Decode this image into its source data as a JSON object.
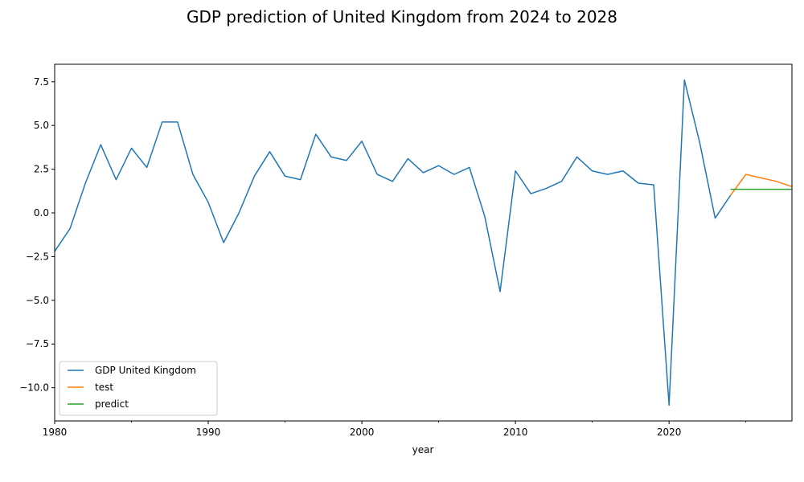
{
  "chart_data": {
    "type": "line",
    "title": "GDP prediction of United Kingdom from 2024 to 2028",
    "xlabel": "year",
    "ylabel": "",
    "xlim": [
      1980,
      2028
    ],
    "ylim": [
      -11.9,
      8.5
    ],
    "x_ticks": [
      1980,
      1990,
      2000,
      2010,
      2020
    ],
    "x_tick_labels": [
      "1980",
      "1990",
      "2000",
      "2010",
      "2020"
    ],
    "x_minor_ticks": [
      1985,
      1995,
      2005,
      2015,
      2025
    ],
    "y_ticks": [
      7.5,
      5.0,
      2.5,
      0.0,
      -2.5,
      -5.0,
      -7.5,
      -10.0
    ],
    "y_tick_labels": [
      "7.5",
      "5.0",
      "2.5",
      "0.0",
      "−2.5",
      "−5.0",
      "−7.5",
      "−10.0"
    ],
    "grid": false,
    "legend_position": "lower-left",
    "series": [
      {
        "name": "GDP United Kingdom",
        "color": "#1f77b4",
        "x": [
          1980,
          1981,
          1982,
          1983,
          1984,
          1985,
          1986,
          1987,
          1988,
          1989,
          1990,
          1991,
          1992,
          1993,
          1994,
          1995,
          1996,
          1997,
          1998,
          1999,
          2000,
          2001,
          2002,
          2003,
          2004,
          2005,
          2006,
          2007,
          2008,
          2009,
          2010,
          2011,
          2012,
          2013,
          2014,
          2015,
          2016,
          2017,
          2018,
          2019,
          2020,
          2021,
          2022,
          2023,
          2024
        ],
        "values": [
          -2.2,
          -0.9,
          1.7,
          3.9,
          1.9,
          3.7,
          2.6,
          5.2,
          5.2,
          2.2,
          0.6,
          -1.7,
          0.0,
          2.1,
          3.5,
          2.1,
          1.9,
          4.5,
          3.2,
          3.0,
          4.1,
          2.2,
          1.8,
          3.1,
          2.3,
          2.7,
          2.2,
          2.6,
          -0.2,
          -4.5,
          2.4,
          1.1,
          1.4,
          1.8,
          3.2,
          2.4,
          2.2,
          2.4,
          1.7,
          1.6,
          -11.0,
          7.6,
          4.0,
          -0.3,
          1.0
        ]
      },
      {
        "name": "test",
        "color": "#ff7f0e",
        "x": [
          2024,
          2025,
          2026,
          2027,
          2028
        ],
        "values": [
          1.0,
          2.2,
          2.0,
          1.8,
          1.5
        ]
      },
      {
        "name": "predict",
        "color": "#2ca02c",
        "x": [
          2024,
          2025,
          2026,
          2027,
          2028
        ],
        "values": [
          1.35,
          1.35,
          1.35,
          1.35,
          1.35
        ]
      }
    ]
  }
}
